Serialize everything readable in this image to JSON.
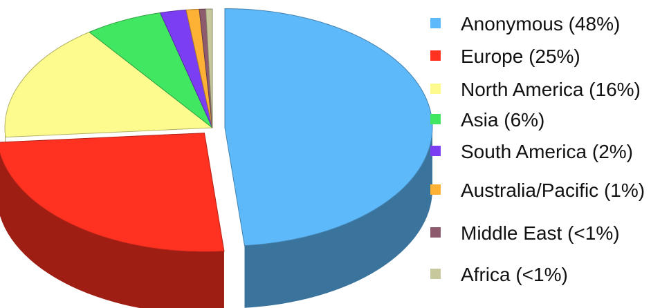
{
  "chart_data": {
    "type": "pie",
    "style": "3d-exploded",
    "legend_position": "right",
    "slices": [
      {
        "label": "Anonymous (48%)",
        "value": 48,
        "color": "#5eb9fb",
        "exploded": true
      },
      {
        "label": "Europe (25%)",
        "value": 25,
        "color": "#ff3121",
        "exploded": true
      },
      {
        "label": "North America (16%)",
        "value": 16,
        "color": "#fefb8e",
        "exploded": false
      },
      {
        "label": "Asia (6%)",
        "value": 6,
        "color": "#42e761",
        "exploded": false
      },
      {
        "label": "South America (2%)",
        "value": 2,
        "color": "#7b3ef2",
        "exploded": false
      },
      {
        "label": "Australia/Pacific (1%)",
        "value": 1,
        "color": "#fdb235",
        "exploded": false
      },
      {
        "label": "Middle East (<1%)",
        "value": 0.5,
        "color": "#8e5a6d",
        "exploded": false
      },
      {
        "label": "Africa (<1%)",
        "value": 0.5,
        "color": "#c7c89c",
        "exploded": false
      }
    ]
  }
}
